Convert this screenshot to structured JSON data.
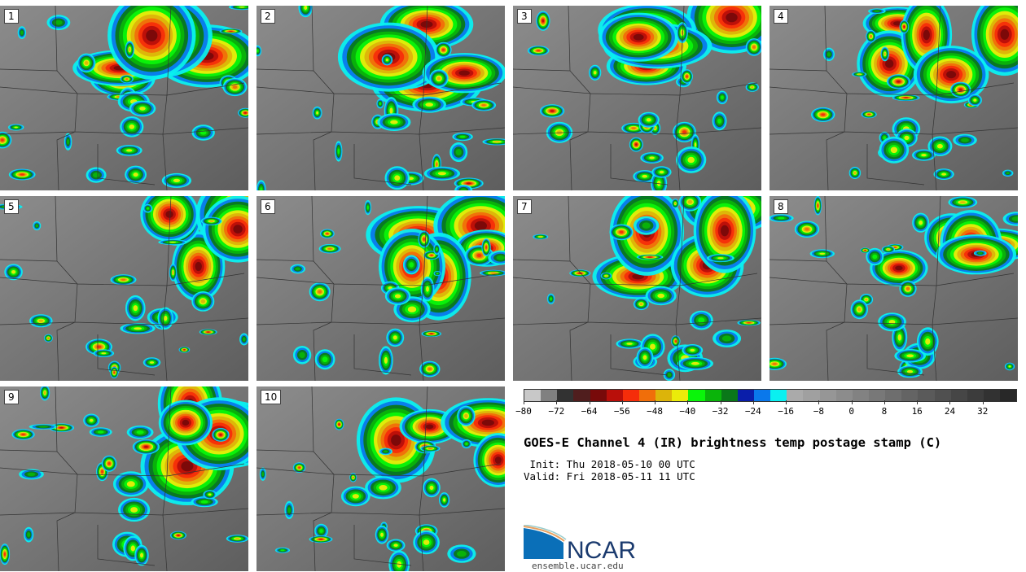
{
  "panels": [
    {
      "label": "1"
    },
    {
      "label": "2"
    },
    {
      "label": "3"
    },
    {
      "label": "4"
    },
    {
      "label": "5"
    },
    {
      "label": "6"
    },
    {
      "label": "7"
    },
    {
      "label": "8"
    },
    {
      "label": "9"
    },
    {
      "label": "10"
    }
  ],
  "colorbar": {
    "min": -80,
    "max": 40,
    "step": 4,
    "tick_labels": [
      "−80",
      "−72",
      "−64",
      "−56",
      "−48",
      "−40",
      "−32",
      "−24",
      "−16",
      "−8",
      "0",
      "8",
      "16",
      "24",
      "32"
    ],
    "colors": [
      "#c8c8c8",
      "#808080",
      "#323232",
      "#501e1e",
      "#780a0a",
      "#b90f0a",
      "#f52d0a",
      "#f06e0a",
      "#dcb40a",
      "#ebeb0a",
      "#0af50a",
      "#0ab40a",
      "#0a7819",
      "#0a1eaa",
      "#0a78eb",
      "#0af0f0",
      "#aaaaaa",
      "#a0a0a0",
      "#969696",
      "#8c8c8c",
      "#828282",
      "#787878",
      "#6e6e6e",
      "#646464",
      "#5a5a5a",
      "#505050",
      "#464646",
      "#3c3c3c",
      "#323232",
      "#282828"
    ]
  },
  "title": "GOES-E Channel 4 (IR) brightness temp postage stamp (C)",
  "init": " Init: Thu 2018-05-10 00 UTC",
  "valid": "Valid: Fri 2018-05-11 11 UTC",
  "logo": {
    "text": "NCAR",
    "url": "ensemble.ucar.edu",
    "brand_color": "#1a3a6e",
    "accent": "#0a6fb8"
  }
}
